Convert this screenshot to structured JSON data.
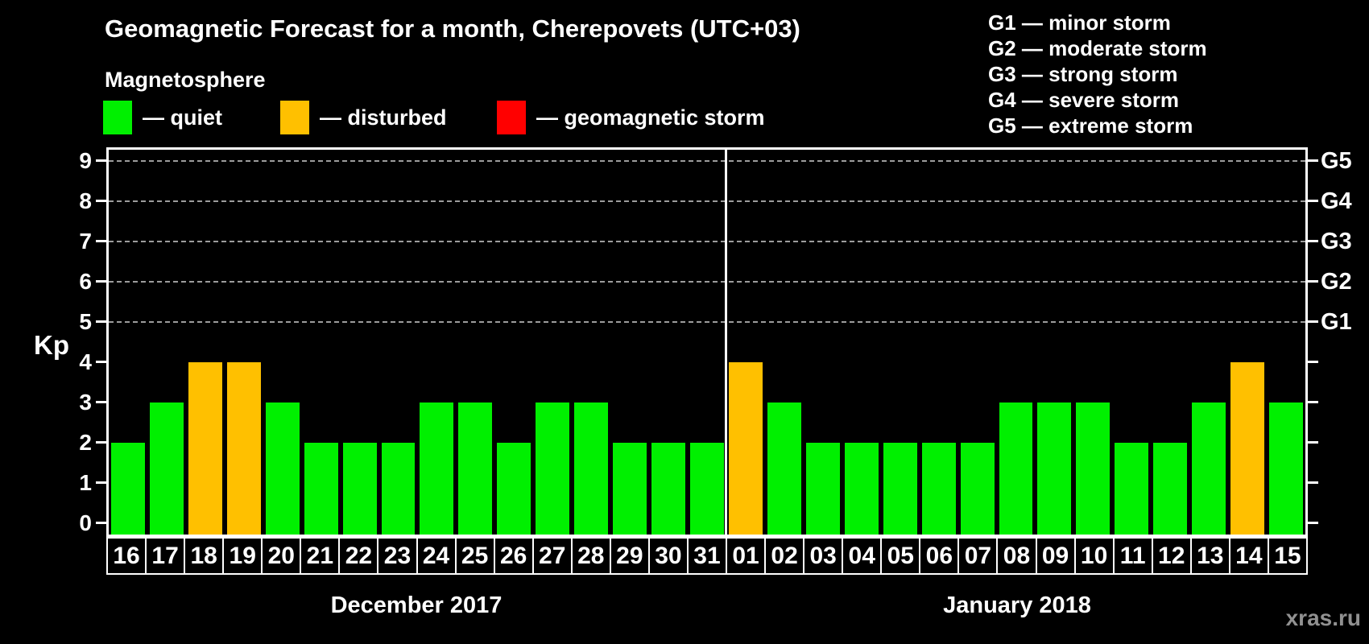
{
  "title": "Geomagnetic Forecast for a month, Cherepovets (UTC+03)",
  "subtitle": "Magnetosphere",
  "legend": [
    {
      "key": "quiet",
      "label": "— quiet"
    },
    {
      "key": "disturbed",
      "label": "— disturbed"
    },
    {
      "key": "storm",
      "label": "— geomagnetic storm"
    }
  ],
  "g_scale_legend": [
    "G1 — minor storm",
    "G2 — moderate storm",
    "G3 — strong storm",
    "G4 — severe storm",
    "G5 — extreme storm"
  ],
  "watermark": "xras.ru",
  "colors": {
    "quiet": "#00F000",
    "disturbed": "#FFC000",
    "storm": "#FF0000",
    "grid": "#9C9C9C",
    "axis": "#FFFFFF",
    "background": "#000000"
  },
  "chart_data": {
    "type": "bar",
    "title": "Geomagnetic Forecast for a month, Cherepovets (UTC+03)",
    "ylabel": "Kp",
    "ylim": [
      0,
      9
    ],
    "yticks": [
      0,
      1,
      2,
      3,
      4,
      5,
      6,
      7,
      8,
      9
    ],
    "gridlines_at_kp": [
      5,
      6,
      7,
      8,
      9
    ],
    "grid": "dashed horizontal at Kp 5-9",
    "right_axis_labels": [
      {
        "label": "G1",
        "kp": 5
      },
      {
        "label": "G2",
        "kp": 6
      },
      {
        "label": "G3",
        "kp": 7
      },
      {
        "label": "G4",
        "kp": 8
      },
      {
        "label": "G5",
        "kp": 9
      }
    ],
    "months": [
      {
        "label": "December 2017",
        "days": [
          {
            "day": "16",
            "kp": 2,
            "status": "quiet"
          },
          {
            "day": "17",
            "kp": 3,
            "status": "quiet"
          },
          {
            "day": "18",
            "kp": 4,
            "status": "disturbed"
          },
          {
            "day": "19",
            "kp": 4,
            "status": "disturbed"
          },
          {
            "day": "20",
            "kp": 3,
            "status": "quiet"
          },
          {
            "day": "21",
            "kp": 2,
            "status": "quiet"
          },
          {
            "day": "22",
            "kp": 2,
            "status": "quiet"
          },
          {
            "day": "23",
            "kp": 2,
            "status": "quiet"
          },
          {
            "day": "24",
            "kp": 3,
            "status": "quiet"
          },
          {
            "day": "25",
            "kp": 3,
            "status": "quiet"
          },
          {
            "day": "26",
            "kp": 2,
            "status": "quiet"
          },
          {
            "day": "27",
            "kp": 3,
            "status": "quiet"
          },
          {
            "day": "28",
            "kp": 3,
            "status": "quiet"
          },
          {
            "day": "29",
            "kp": 2,
            "status": "quiet"
          },
          {
            "day": "30",
            "kp": 2,
            "status": "quiet"
          },
          {
            "day": "31",
            "kp": 2,
            "status": "quiet"
          }
        ]
      },
      {
        "label": "January 2018",
        "days": [
          {
            "day": "01",
            "kp": 4,
            "status": "disturbed"
          },
          {
            "day": "02",
            "kp": 3,
            "status": "quiet"
          },
          {
            "day": "03",
            "kp": 2,
            "status": "quiet"
          },
          {
            "day": "04",
            "kp": 2,
            "status": "quiet"
          },
          {
            "day": "05",
            "kp": 2,
            "status": "quiet"
          },
          {
            "day": "06",
            "kp": 2,
            "status": "quiet"
          },
          {
            "day": "07",
            "kp": 2,
            "status": "quiet"
          },
          {
            "day": "08",
            "kp": 3,
            "status": "quiet"
          },
          {
            "day": "09",
            "kp": 3,
            "status": "quiet"
          },
          {
            "day": "10",
            "kp": 3,
            "status": "quiet"
          },
          {
            "day": "11",
            "kp": 2,
            "status": "quiet"
          },
          {
            "day": "12",
            "kp": 2,
            "status": "quiet"
          },
          {
            "day": "13",
            "kp": 3,
            "status": "quiet"
          },
          {
            "day": "14",
            "kp": 4,
            "status": "disturbed"
          },
          {
            "day": "15",
            "kp": 3,
            "status": "quiet"
          }
        ]
      }
    ]
  }
}
